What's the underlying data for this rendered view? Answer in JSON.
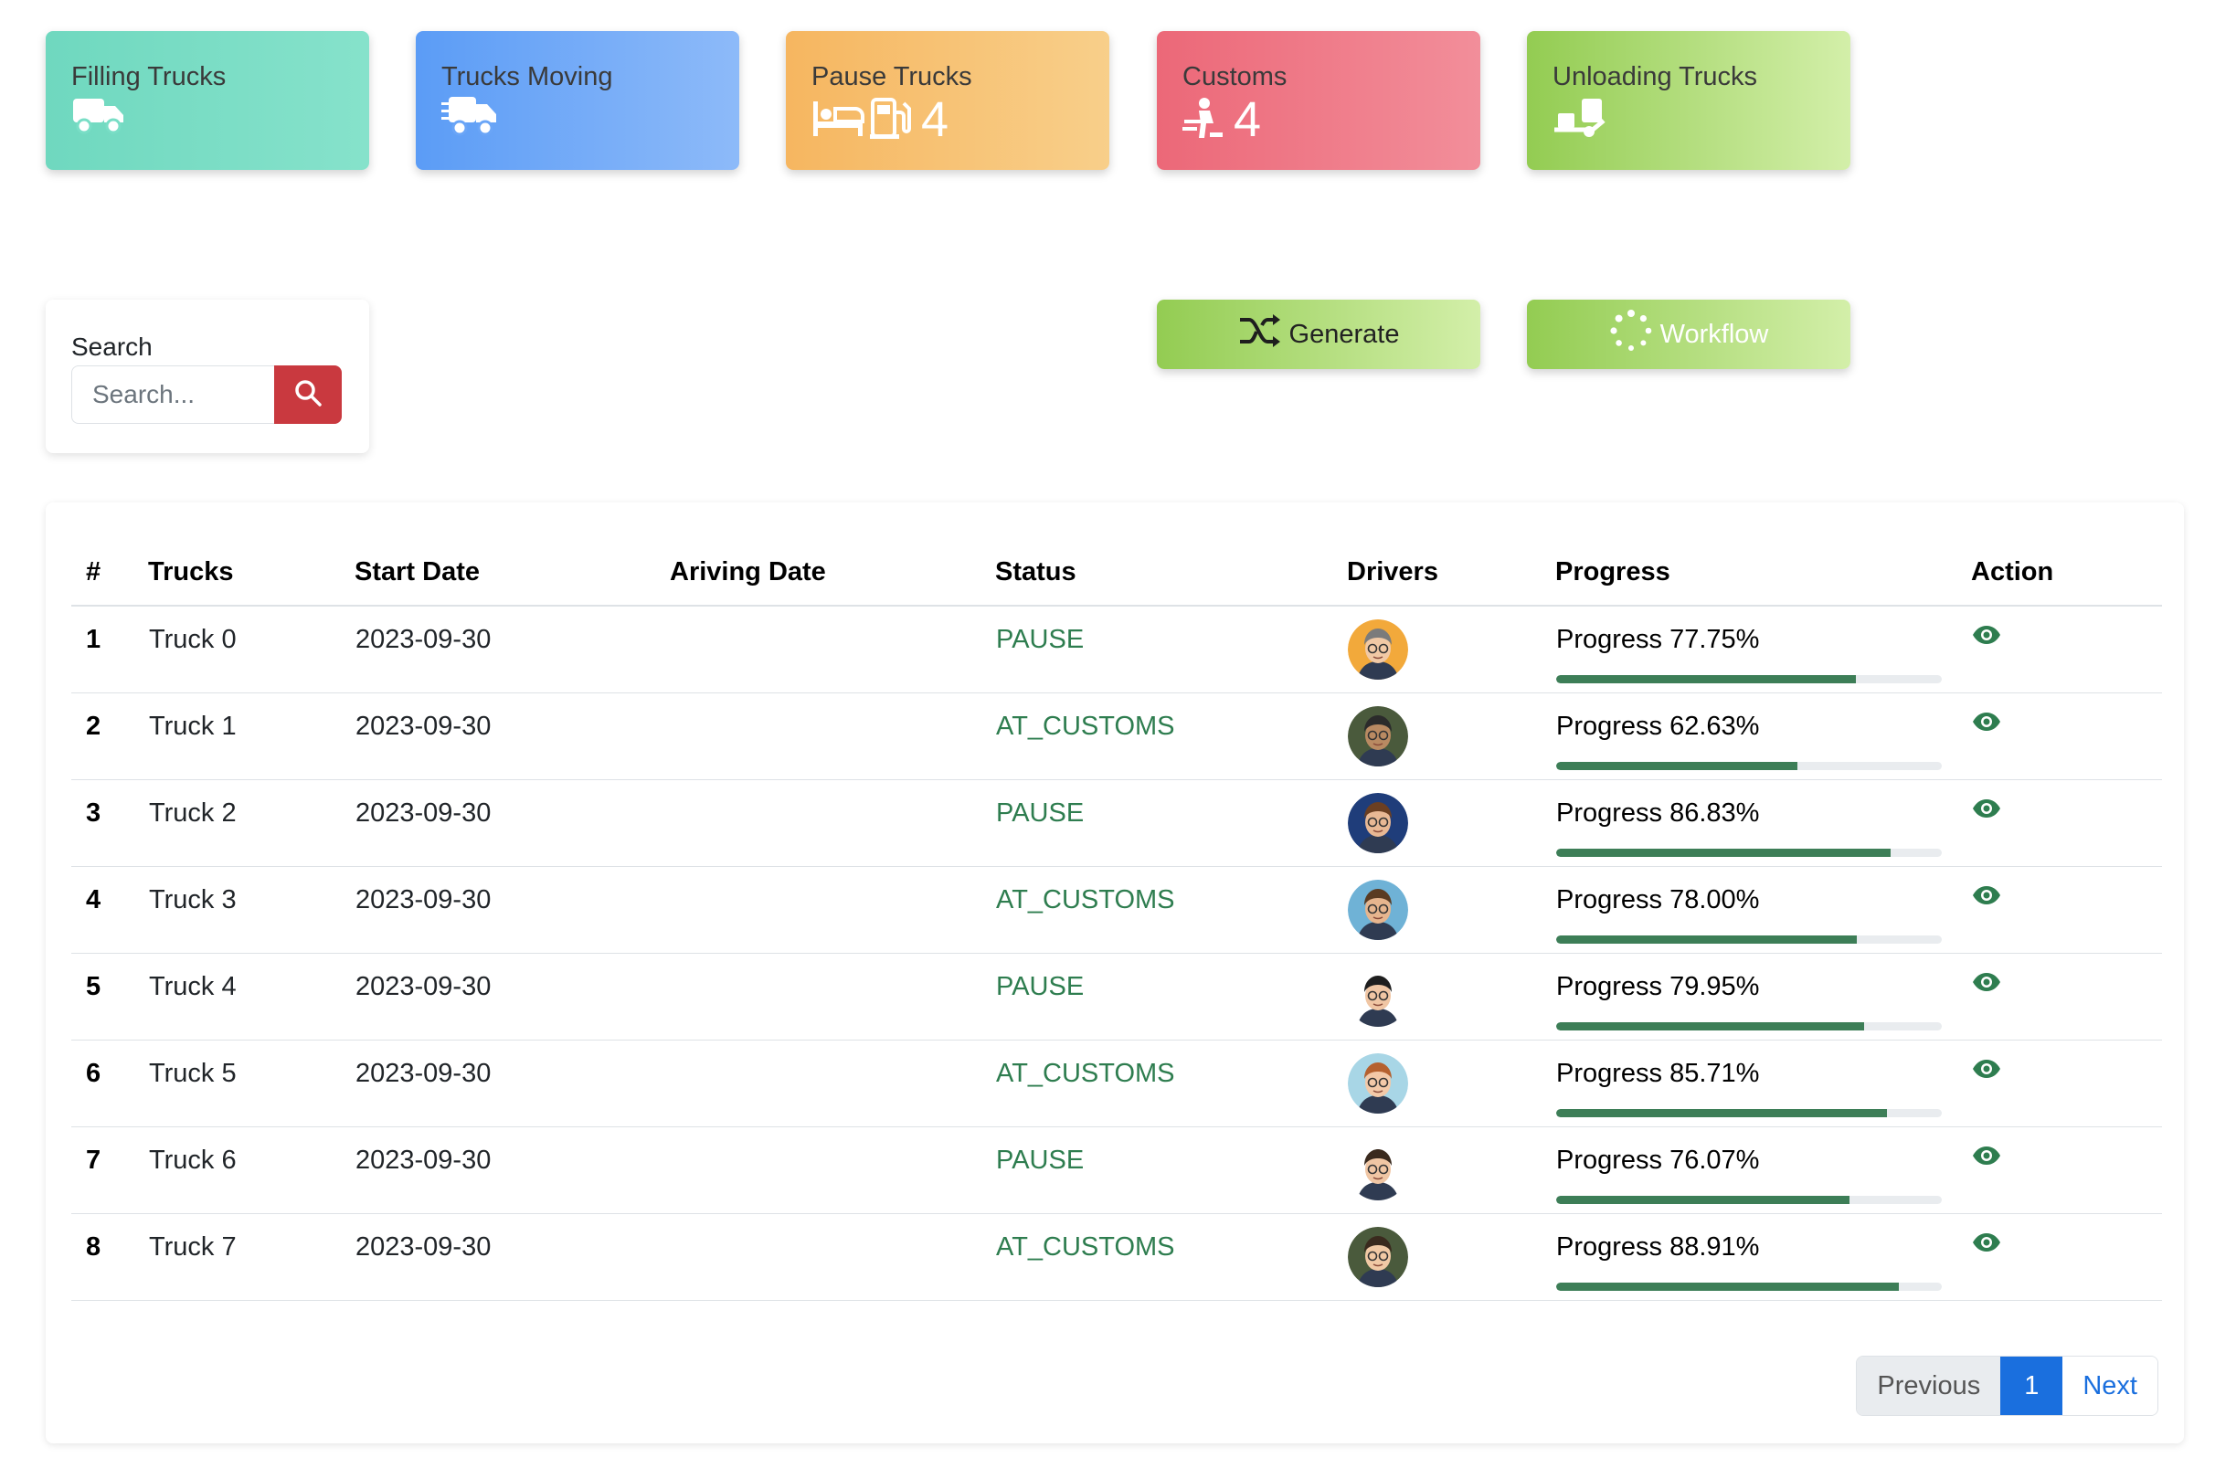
{
  "stat_cards": {
    "filling": {
      "title": "Filling Trucks",
      "count": ""
    },
    "moving": {
      "title": "Trucks Moving",
      "count": ""
    },
    "pause": {
      "title": "Pause Trucks",
      "count": "4"
    },
    "customs": {
      "title": "Customs",
      "count": "4"
    },
    "unloading": {
      "title": "Unloading Trucks",
      "count": ""
    }
  },
  "search": {
    "label": "Search",
    "placeholder": "Search..."
  },
  "actions": {
    "generate_label": "Generate",
    "workflow_label": "Workflow"
  },
  "table": {
    "headers": [
      "#",
      "Trucks",
      "Start Date",
      "Ariving Date",
      "Status",
      "Drivers",
      "Progress",
      "Action"
    ],
    "rows": [
      {
        "num": "1",
        "truck": "Truck 0",
        "start": "2023-09-30",
        "arriving": "",
        "status": "PAUSE",
        "progress_label": "Progress 77.75%",
        "progress": 77.75,
        "avatar_bg": "#f2a93b",
        "avatar_skin": "#f1c9a5",
        "avatar_hair": "#7b7b7b"
      },
      {
        "num": "2",
        "truck": "Truck 1",
        "start": "2023-09-30",
        "arriving": "",
        "status": "AT_CUSTOMS",
        "progress_label": "Progress 62.63%",
        "progress": 62.63,
        "avatar_bg": "#4a5a3c",
        "avatar_skin": "#b98a62",
        "avatar_hair": "#2b2b2b"
      },
      {
        "num": "3",
        "truck": "Truck 2",
        "start": "2023-09-30",
        "arriving": "",
        "status": "PAUSE",
        "progress_label": "Progress 86.83%",
        "progress": 86.83,
        "avatar_bg": "#1f3d7a",
        "avatar_skin": "#e8b894",
        "avatar_hair": "#6b3f22"
      },
      {
        "num": "4",
        "truck": "Truck 3",
        "start": "2023-09-30",
        "arriving": "",
        "status": "AT_CUSTOMS",
        "progress_label": "Progress 78.00%",
        "progress": 78.0,
        "avatar_bg": "#6fb2d6",
        "avatar_skin": "#e6b58e",
        "avatar_hair": "#5a3b22"
      },
      {
        "num": "5",
        "truck": "Truck 4",
        "start": "2023-09-30",
        "arriving": "",
        "status": "PAUSE",
        "progress_label": "Progress 79.95%",
        "progress": 79.95,
        "avatar_bg": "#ffffff",
        "avatar_skin": "#f0c6a4",
        "avatar_hair": "#1e1e1e"
      },
      {
        "num": "6",
        "truck": "Truck 5",
        "start": "2023-09-30",
        "arriving": "",
        "status": "AT_CUSTOMS",
        "progress_label": "Progress 85.71%",
        "progress": 85.71,
        "avatar_bg": "#a8d6e6",
        "avatar_skin": "#f3c9a8",
        "avatar_hair": "#b5612f"
      },
      {
        "num": "7",
        "truck": "Truck 6",
        "start": "2023-09-30",
        "arriving": "",
        "status": "PAUSE",
        "progress_label": "Progress 76.07%",
        "progress": 76.07,
        "avatar_bg": "#ffffff",
        "avatar_skin": "#f0c6a4",
        "avatar_hair": "#3a2a1e"
      },
      {
        "num": "8",
        "truck": "Truck 7",
        "start": "2023-09-30",
        "arriving": "",
        "status": "AT_CUSTOMS",
        "progress_label": "Progress 88.91%",
        "progress": 88.91,
        "avatar_bg": "#4a5a3c",
        "avatar_skin": "#f1c9a5",
        "avatar_hair": "#3a2a1e"
      }
    ]
  },
  "pagination": {
    "previous": "Previous",
    "current": "1",
    "next": "Next"
  },
  "colors": {
    "status_text": "#2e7d4f",
    "progress_fill": "#3d7e57",
    "search_button": "#c9393f",
    "page_active": "#1a6fde"
  },
  "icons": {
    "filling": [
      "truck-icon"
    ],
    "moving": [
      "truck-fast-icon"
    ],
    "pause": [
      "bed-icon",
      "gas-pump-icon"
    ],
    "customs": [
      "customs-officer-icon"
    ],
    "unloading": [
      "dolly-icon"
    ],
    "generate": "shuffle-icon",
    "workflow": "spinner-icon",
    "search": "search-icon",
    "action": "eye-icon"
  }
}
